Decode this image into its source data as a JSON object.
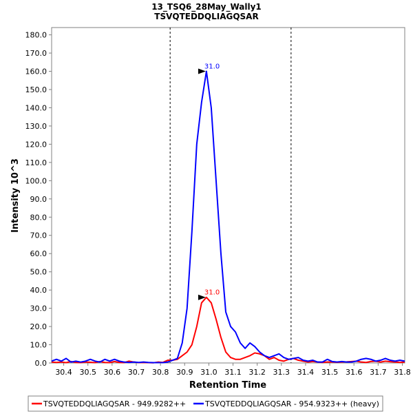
{
  "chart_data": {
    "type": "line",
    "title": "13_TSQ6_28May_Wally1",
    "subtitle": "TSVQTEDDQLIAGQSAR",
    "xlabel": "Retention Time",
    "ylabel": "Intensity 10^3",
    "xlim": [
      30.35,
      31.81
    ],
    "ylim": [
      0,
      184
    ],
    "x_ticks": [
      "30.4",
      "30.5",
      "30.6",
      "30.7",
      "30.8",
      "30.9",
      "31.0",
      "31.1",
      "31.2",
      "31.3",
      "31.4",
      "31.5",
      "31.6",
      "31.7",
      "31.8"
    ],
    "y_ticks": [
      "0.0",
      "10.0",
      "20.0",
      "30.0",
      "40.0",
      "50.0",
      "60.0",
      "70.0",
      "80.0",
      "90.0",
      "100.0",
      "110.0",
      "120.0",
      "130.0",
      "140.0",
      "150.0",
      "160.0",
      "170.0",
      "180.0"
    ],
    "grid": false,
    "legend_position": "bottom",
    "integration_bounds": [
      30.84,
      31.34
    ],
    "series": [
      {
        "name": "TSVQTEDDQLIAGQSAR - 949.9282++",
        "color": "#ff0000",
        "x": [
          30.35,
          30.37,
          30.39,
          30.41,
          30.43,
          30.45,
          30.47,
          30.49,
          30.51,
          30.53,
          30.55,
          30.57,
          30.59,
          30.61,
          30.63,
          30.65,
          30.67,
          30.69,
          30.71,
          30.73,
          30.75,
          30.77,
          30.79,
          30.81,
          30.83,
          30.85,
          30.87,
          30.89,
          30.91,
          30.93,
          30.95,
          30.97,
          30.99,
          31.01,
          31.03,
          31.05,
          31.07,
          31.09,
          31.11,
          31.13,
          31.15,
          31.17,
          31.19,
          31.21,
          31.23,
          31.25,
          31.27,
          31.29,
          31.31,
          31.33,
          31.35,
          31.37,
          31.39,
          31.41,
          31.43,
          31.45,
          31.47,
          31.49,
          31.51,
          31.53,
          31.55,
          31.57,
          31.59,
          31.61,
          31.63,
          31.65,
          31.67,
          31.69,
          31.71,
          31.73,
          31.75,
          31.77,
          31.79,
          31.81
        ],
        "values": [
          0.5,
          0.3,
          0.5,
          0.2,
          0.8,
          0.3,
          0.2,
          0.5,
          0.4,
          0.2,
          0.8,
          0.3,
          0.2,
          0.8,
          0.3,
          0.2,
          1.0,
          0.5,
          0.2,
          0.3,
          0.2,
          0.1,
          0.5,
          0.3,
          1.5,
          1.5,
          2.0,
          4.0,
          6.0,
          10.0,
          20.0,
          33.0,
          36.0,
          33.0,
          24.0,
          14.0,
          6.0,
          3.0,
          2.0,
          2.0,
          3.0,
          4.0,
          5.5,
          5.0,
          4.0,
          2.0,
          3.0,
          1.5,
          1.0,
          2.0,
          2.5,
          1.5,
          1.0,
          0.5,
          0.8,
          0.5,
          0.3,
          0.5,
          0.5,
          0.4,
          0.5,
          0.6,
          0.8,
          1.0,
          0.5,
          0.3,
          0.8,
          1.0,
          0.5,
          1.0,
          0.7,
          0.5,
          0.3,
          0.5
        ]
      },
      {
        "name": "TSVQTEDDQLIAGQSAR - 954.9323++ (heavy)",
        "color": "#0000ff",
        "x": [
          30.35,
          30.37,
          30.39,
          30.41,
          30.43,
          30.45,
          30.47,
          30.49,
          30.51,
          30.53,
          30.55,
          30.57,
          30.59,
          30.61,
          30.63,
          30.65,
          30.67,
          30.69,
          30.71,
          30.73,
          30.75,
          30.77,
          30.79,
          30.81,
          30.83,
          30.85,
          30.87,
          30.89,
          30.91,
          30.93,
          30.95,
          30.97,
          30.99,
          31.01,
          31.03,
          31.05,
          31.07,
          31.09,
          31.11,
          31.13,
          31.15,
          31.17,
          31.19,
          31.21,
          31.23,
          31.25,
          31.27,
          31.29,
          31.31,
          31.33,
          31.35,
          31.37,
          31.39,
          31.41,
          31.43,
          31.45,
          31.47,
          31.49,
          31.51,
          31.53,
          31.55,
          31.57,
          31.59,
          31.61,
          31.63,
          31.65,
          31.67,
          31.69,
          31.71,
          31.73,
          31.75,
          31.77,
          31.79,
          31.81
        ],
        "values": [
          1.0,
          2.0,
          1.0,
          2.5,
          0.5,
          1.0,
          0.5,
          1.0,
          2.0,
          1.0,
          0.5,
          2.0,
          1.0,
          2.0,
          1.0,
          0.5,
          0.3,
          0.5,
          0.3,
          0.5,
          0.3,
          0.2,
          0.2,
          0.2,
          0.5,
          1.5,
          2.5,
          11.0,
          30.0,
          72.0,
          120.0,
          143.0,
          160.0,
          140.0,
          100.0,
          60.0,
          28.0,
          20.0,
          17.0,
          11.0,
          8.0,
          11.0,
          9.0,
          6.0,
          4.0,
          3.0,
          4.0,
          5.0,
          3.0,
          2.0,
          2.5,
          3.0,
          1.5,
          1.0,
          1.5,
          0.5,
          0.5,
          2.0,
          0.8,
          0.5,
          0.8,
          0.5,
          0.5,
          1.0,
          2.0,
          2.5,
          2.0,
          1.0,
          1.5,
          2.5,
          1.5,
          1.0,
          1.5,
          1.0
        ]
      }
    ],
    "peak_labels": [
      {
        "text": "31.0",
        "x": 30.993,
        "y": 160.0,
        "color": "#0000ff"
      },
      {
        "text": "31.0",
        "x": 30.993,
        "y": 36.0,
        "color": "#ff0000"
      }
    ]
  }
}
